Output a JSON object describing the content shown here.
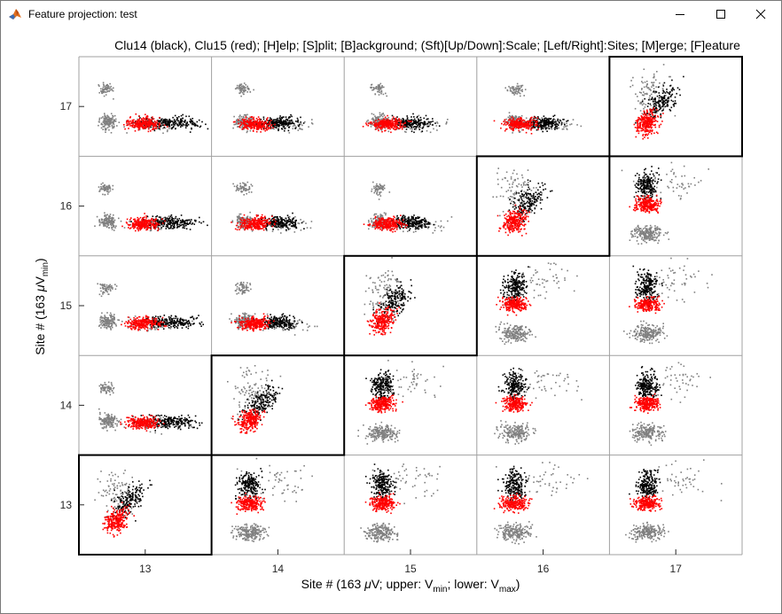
{
  "window": {
    "title": "Feature projection: test",
    "app_icon": "matlab-icon",
    "controls": [
      "minimize-icon",
      "maximize-icon",
      "close-icon"
    ]
  },
  "plot": {
    "title": "Clu14 (black), Clu15 (red); [H]elp; [S]plit; [B]ackground; (Sft)[Up/Down]:Scale; [Left/Right]:Sites; [M]erge; [F]eature",
    "xlabel_main": "Site # (163 ",
    "xlabel_mu": "μ",
    "xlabel_rest": "V; upper: V",
    "xlabel_sub1": "min",
    "xlabel_mid": "; lower: V",
    "xlabel_sub2": "max",
    "xlabel_end": ")",
    "ylabel_main": "Site # (163 ",
    "ylabel_mu": "μ",
    "ylabel_rest": "V",
    "ylabel_sub": "min",
    "ylabel_end": ")"
  },
  "chart_data": {
    "type": "scatter",
    "xlim": [
      12.5,
      17.5
    ],
    "ylim": [
      12.5,
      17.5
    ],
    "x_ticks": [
      "13",
      "14",
      "15",
      "16",
      "17"
    ],
    "y_ticks": [
      "13",
      "14",
      "15",
      "16",
      "17"
    ],
    "x_tick_values": [
      13,
      14,
      15,
      16,
      17
    ],
    "y_tick_values": [
      13,
      14,
      15,
      16,
      17
    ],
    "grid_sites": [
      13,
      14,
      15,
      16,
      17
    ],
    "diagonal_highlight": true,
    "series": [
      {
        "name": "Clu14",
        "color": "#000000"
      },
      {
        "name": "Clu15",
        "color": "#ff0000"
      },
      {
        "name": "background",
        "color": "#808080"
      }
    ],
    "colors": {
      "background": "#808080",
      "clu14": "#000000",
      "clu15": "#ff0000",
      "grid": "#a0a0a0"
    }
  }
}
